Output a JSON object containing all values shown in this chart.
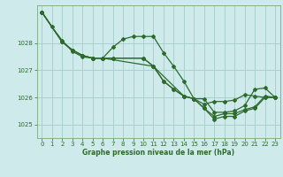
{
  "title": "Graphe pression niveau de la mer (hPa)",
  "bg_color": "#ceeaea",
  "grid_color": "#aacece",
  "line_color": "#2d6b2d",
  "xlim": [
    -0.5,
    23.5
  ],
  "ylim": [
    1024.5,
    1029.4
  ],
  "yticks": [
    1025,
    1026,
    1027,
    1028
  ],
  "xticks": [
    0,
    1,
    2,
    3,
    4,
    5,
    6,
    7,
    8,
    9,
    10,
    11,
    12,
    13,
    14,
    15,
    16,
    17,
    18,
    19,
    20,
    21,
    22,
    23
  ],
  "line1_x": [
    0,
    1,
    2,
    3,
    4,
    5,
    6,
    7,
    8,
    9,
    10,
    11,
    12,
    13,
    14,
    15,
    16,
    17,
    18,
    19,
    20,
    21,
    22,
    23
  ],
  "line1_y": [
    1029.15,
    1028.6,
    1028.1,
    1027.7,
    1027.5,
    1027.45,
    1027.45,
    1027.85,
    1028.15,
    1028.25,
    1028.25,
    1028.25,
    1027.65,
    1027.15,
    1026.6,
    1025.95,
    1025.75,
    1025.85,
    1025.85,
    1025.9,
    1026.1,
    1026.05,
    1026.0,
    1026.0
  ],
  "line2_x": [
    0,
    2,
    3,
    4,
    5,
    6,
    7,
    10,
    11,
    12,
    13,
    14,
    15,
    16,
    17,
    18,
    19,
    20,
    21,
    22,
    23
  ],
  "line2_y": [
    1029.15,
    1028.05,
    1027.75,
    1027.55,
    1027.45,
    1027.45,
    1027.45,
    1027.45,
    1027.15,
    1026.6,
    1026.3,
    1026.05,
    1025.95,
    1025.6,
    1025.3,
    1025.4,
    1025.4,
    1025.55,
    1025.65,
    1026.05,
    1026.0
  ],
  "line3_x": [
    0,
    2,
    3,
    4,
    5,
    6,
    7,
    10,
    11,
    12,
    13,
    14,
    15,
    16,
    17,
    18,
    19,
    20,
    21,
    22,
    23
  ],
  "line3_y": [
    1029.15,
    1028.05,
    1027.75,
    1027.55,
    1027.45,
    1027.45,
    1027.45,
    1027.45,
    1027.15,
    1026.6,
    1026.3,
    1026.05,
    1025.95,
    1025.6,
    1025.2,
    1025.3,
    1025.3,
    1025.5,
    1025.6,
    1026.0,
    1026.0
  ],
  "line4_x": [
    0,
    2,
    3,
    4,
    5,
    6,
    11,
    14,
    15,
    16,
    17,
    18,
    19,
    20,
    21,
    22,
    23
  ],
  "line4_y": [
    1029.15,
    1028.05,
    1027.75,
    1027.55,
    1027.45,
    1027.45,
    1027.15,
    1026.05,
    1025.95,
    1025.95,
    1025.45,
    1025.45,
    1025.5,
    1025.7,
    1026.3,
    1026.35,
    1026.0
  ]
}
